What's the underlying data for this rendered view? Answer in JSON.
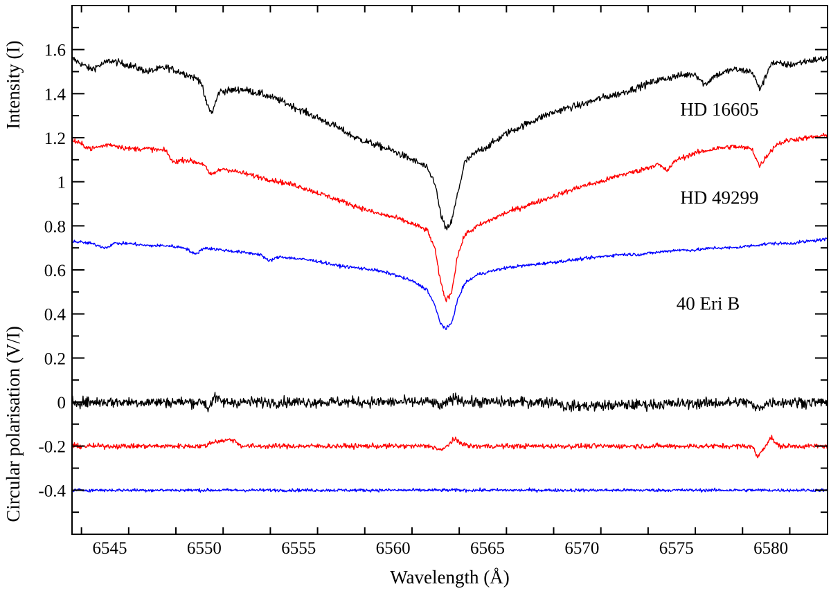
{
  "chart_data": {
    "type": "line",
    "title": "",
    "xlabel": "Wavelength (Å)",
    "ylabel_upper": "Intensity  (I)",
    "ylabel_lower": "Circular polarisation   (V/I)",
    "xlim": [
      6543,
      6583
    ],
    "ylim": [
      -0.6,
      1.8
    ],
    "x_ticks": [
      6545,
      6550,
      6555,
      6560,
      6565,
      6570,
      6575,
      6580
    ],
    "x_minor_step": 2.5,
    "y_ticks": [
      -0.4,
      -0.2,
      0,
      0.2,
      0.4,
      0.6,
      0.8,
      1,
      1.2,
      1.4,
      1.6
    ],
    "y_tick_labels": [
      "-0.4",
      "-0.2",
      "0",
      "0.2",
      "0.4",
      "0.6",
      "0.8",
      "1",
      "1.2",
      "1.4",
      "1.6"
    ],
    "y_minor_step": 0.1,
    "grid": false,
    "legend": "none",
    "annotations": [
      {
        "text": "HD 16605",
        "x": 6575.2,
        "y": 1.3
      },
      {
        "text": "HD 49299",
        "x": 6575.2,
        "y": 0.9
      },
      {
        "text": "40 Eri B",
        "x": 6575.0,
        "y": 0.42
      }
    ],
    "series": [
      {
        "kind": "intensity",
        "color": "#000000",
        "noise": 0.011,
        "x": [
          6543,
          6544,
          6545,
          6546,
          6547,
          6548,
          6549,
          6549.8,
          6550.1,
          6550.4,
          6550.8,
          6552,
          6553,
          6554,
          6555,
          6556,
          6557,
          6558,
          6559,
          6560,
          6561,
          6561.7,
          6562.2,
          6562.5,
          6562.8,
          6563.1,
          6563.4,
          6563.8,
          6564.5,
          6565,
          6566,
          6567,
          6568,
          6569,
          6570,
          6571,
          6572,
          6573,
          6574,
          6575,
          6576,
          6576.5,
          6577,
          6578,
          6579,
          6579.4,
          6579.7,
          6580,
          6581,
          6582,
          6583
        ],
        "y": [
          1.56,
          1.51,
          1.55,
          1.53,
          1.5,
          1.52,
          1.49,
          1.46,
          1.36,
          1.31,
          1.41,
          1.42,
          1.4,
          1.37,
          1.33,
          1.29,
          1.25,
          1.2,
          1.17,
          1.14,
          1.1,
          1.07,
          1.0,
          0.86,
          0.78,
          0.82,
          0.94,
          1.09,
          1.14,
          1.16,
          1.22,
          1.26,
          1.3,
          1.33,
          1.35,
          1.38,
          1.4,
          1.43,
          1.46,
          1.48,
          1.49,
          1.44,
          1.48,
          1.51,
          1.5,
          1.42,
          1.47,
          1.54,
          1.53,
          1.55,
          1.56
        ]
      },
      {
        "kind": "intensity",
        "color": "#ff0000",
        "noise": 0.008,
        "x": [
          6543,
          6544,
          6545,
          6546,
          6547,
          6548,
          6548.3,
          6549,
          6550,
          6550.3,
          6551,
          6552,
          6553,
          6554,
          6555,
          6556,
          6557,
          6558,
          6559,
          6560,
          6561,
          6561.8,
          6562.2,
          6562.5,
          6562.8,
          6563.1,
          6563.4,
          6563.8,
          6564.5,
          6565,
          6566,
          6567,
          6568,
          6569,
          6570,
          6571,
          6572,
          6573,
          6574,
          6574.5,
          6575,
          6576,
          6577,
          6578,
          6579,
          6579.4,
          6579.8,
          6580.3,
          6581,
          6582,
          6583
        ],
        "y": [
          1.19,
          1.15,
          1.17,
          1.15,
          1.15,
          1.14,
          1.09,
          1.1,
          1.08,
          1.03,
          1.06,
          1.04,
          1.02,
          1.0,
          0.98,
          0.95,
          0.92,
          0.89,
          0.86,
          0.84,
          0.81,
          0.78,
          0.7,
          0.55,
          0.46,
          0.5,
          0.66,
          0.76,
          0.8,
          0.82,
          0.86,
          0.89,
          0.92,
          0.95,
          0.98,
          1.0,
          1.03,
          1.05,
          1.08,
          1.05,
          1.1,
          1.13,
          1.15,
          1.16,
          1.15,
          1.07,
          1.12,
          1.17,
          1.19,
          1.2,
          1.21
        ]
      },
      {
        "kind": "intensity",
        "color": "#0000ff",
        "noise": 0.005,
        "x": [
          6543,
          6544,
          6544.8,
          6545.2,
          6546,
          6547,
          6548,
          6549,
          6549.5,
          6550,
          6551,
          6552,
          6553,
          6553.4,
          6554,
          6555,
          6556,
          6557,
          6558,
          6559,
          6560,
          6561,
          6561.8,
          6562.2,
          6562.5,
          6562.8,
          6563.1,
          6563.4,
          6563.8,
          6564.5,
          6565,
          6566,
          6567,
          6568,
          6569,
          6570,
          6571,
          6572,
          6573,
          6574,
          6575,
          6576,
          6577,
          6578,
          6579,
          6580,
          6581,
          6582,
          6583
        ],
        "y": [
          0.73,
          0.72,
          0.7,
          0.72,
          0.72,
          0.71,
          0.71,
          0.7,
          0.67,
          0.7,
          0.69,
          0.68,
          0.67,
          0.64,
          0.66,
          0.65,
          0.64,
          0.62,
          0.61,
          0.6,
          0.58,
          0.55,
          0.51,
          0.44,
          0.36,
          0.33,
          0.36,
          0.46,
          0.54,
          0.58,
          0.59,
          0.61,
          0.62,
          0.63,
          0.64,
          0.65,
          0.66,
          0.67,
          0.67,
          0.68,
          0.69,
          0.69,
          0.7,
          0.7,
          0.71,
          0.72,
          0.72,
          0.73,
          0.74
        ]
      },
      {
        "kind": "polarisation",
        "color": "#000000",
        "noise": 0.017,
        "x": [
          6543,
          6550,
          6550.2,
          6550.5,
          6551,
          6562,
          6562.6,
          6563.2,
          6564,
          6568.8,
          6569,
          6578.8,
          6579.2,
          6580,
          6583
        ],
        "y": [
          0.0,
          0.0,
          -0.03,
          0.02,
          0.0,
          0.0,
          -0.02,
          0.02,
          0.0,
          0.0,
          -0.02,
          0.0,
          -0.03,
          0.0,
          0.0
        ]
      },
      {
        "kind": "polarisation",
        "color": "#ff0000",
        "noise": 0.008,
        "x": [
          6543,
          6550,
          6550.5,
          6551.5,
          6552,
          6562,
          6562.6,
          6563.2,
          6564,
          6579,
          6579.3,
          6580,
          6580.4,
          6583
        ],
        "y": [
          -0.2,
          -0.2,
          -0.18,
          -0.17,
          -0.2,
          -0.2,
          -0.22,
          -0.17,
          -0.2,
          -0.2,
          -0.25,
          -0.16,
          -0.2,
          -0.2
        ]
      },
      {
        "kind": "polarisation",
        "color": "#0000ff",
        "noise": 0.005,
        "x": [
          6543,
          6583
        ],
        "y": [
          -0.4,
          -0.4
        ]
      }
    ]
  }
}
